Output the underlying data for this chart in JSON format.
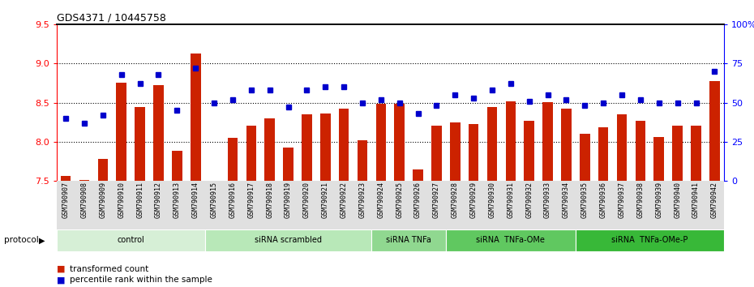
{
  "title": "GDS4371 / 10445758",
  "samples": [
    "GSM790907",
    "GSM790908",
    "GSM790909",
    "GSM790910",
    "GSM790911",
    "GSM790912",
    "GSM790913",
    "GSM790914",
    "GSM790915",
    "GSM790916",
    "GSM790917",
    "GSM790918",
    "GSM790919",
    "GSM790920",
    "GSM790921",
    "GSM790922",
    "GSM790923",
    "GSM790924",
    "GSM790925",
    "GSM790926",
    "GSM790927",
    "GSM790928",
    "GSM790929",
    "GSM790930",
    "GSM790931",
    "GSM790932",
    "GSM790933",
    "GSM790934",
    "GSM790935",
    "GSM790936",
    "GSM790937",
    "GSM790938",
    "GSM790939",
    "GSM790940",
    "GSM790941",
    "GSM790942"
  ],
  "bar_values": [
    7.56,
    7.51,
    7.78,
    8.75,
    8.44,
    8.72,
    7.88,
    9.13,
    7.5,
    8.05,
    8.2,
    8.3,
    7.93,
    8.35,
    8.36,
    8.42,
    8.02,
    8.48,
    8.48,
    7.65,
    8.2,
    8.25,
    8.23,
    8.44,
    8.52,
    8.27,
    8.51,
    8.42,
    8.1,
    8.18,
    8.35,
    8.27,
    8.06,
    8.2,
    8.2,
    8.78
  ],
  "blue_values": [
    40,
    37,
    42,
    68,
    62,
    68,
    45,
    72,
    50,
    52,
    58,
    58,
    47,
    58,
    60,
    60,
    50,
    52,
    50,
    43,
    48,
    55,
    53,
    58,
    62,
    51,
    55,
    52,
    48,
    50,
    55,
    52,
    50,
    50,
    50,
    70
  ],
  "groups": [
    {
      "label": "control",
      "start": 0,
      "end": 7,
      "color": "#d6efd6"
    },
    {
      "label": "siRNA scrambled",
      "start": 8,
      "end": 16,
      "color": "#b8e8b8"
    },
    {
      "label": "siRNA TNFa",
      "start": 17,
      "end": 20,
      "color": "#90d890"
    },
    {
      "label": "siRNA  TNFa-OMe",
      "start": 21,
      "end": 27,
      "color": "#60c860"
    },
    {
      "label": "siRNA  TNFa-OMe-P",
      "start": 28,
      "end": 35,
      "color": "#38b838"
    }
  ],
  "ylim_left": [
    7.5,
    9.5
  ],
  "ylim_right": [
    0,
    100
  ],
  "yticks_left": [
    7.5,
    8.0,
    8.5,
    9.0,
    9.5
  ],
  "yticks_right": [
    0,
    25,
    50,
    75,
    100
  ],
  "ytick_labels_right": [
    "0",
    "25",
    "50",
    "75",
    "100%"
  ],
  "bar_color": "#cc2200",
  "dot_color": "#0000cc",
  "legend_bar_label": "transformed count",
  "legend_dot_label": "percentile rank within the sample",
  "protocol_label": "protocol",
  "grid_lines": [
    8.0,
    8.5,
    9.0
  ]
}
